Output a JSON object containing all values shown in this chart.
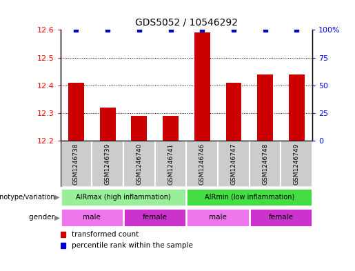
{
  "title": "GDS5052 / 10546292",
  "samples": [
    "GSM1246738",
    "GSM1246739",
    "GSM1246740",
    "GSM1246741",
    "GSM1246746",
    "GSM1246747",
    "GSM1246748",
    "GSM1246749"
  ],
  "red_values": [
    12.41,
    12.32,
    12.29,
    12.29,
    12.59,
    12.41,
    12.44,
    12.44
  ],
  "blue_values_pct": [
    100,
    100,
    100,
    100,
    100,
    100,
    100,
    100
  ],
  "ylim_left": [
    12.2,
    12.6
  ],
  "ylim_right": [
    0,
    100
  ],
  "yticks_left": [
    12.2,
    12.3,
    12.4,
    12.5,
    12.6
  ],
  "yticks_right": [
    0,
    25,
    50,
    75,
    100
  ],
  "ytick_labels_right": [
    "0",
    "25",
    "50",
    "75",
    "100%"
  ],
  "bar_color": "#cc0000",
  "dot_color": "#0000cc",
  "genotype_groups": [
    {
      "label": "AIRmax (high inflammation)",
      "start": 0,
      "end": 4,
      "color": "#99ee99"
    },
    {
      "label": "AIRmin (low inflammation)",
      "start": 4,
      "end": 8,
      "color": "#44dd44"
    }
  ],
  "gender_groups": [
    {
      "label": "male",
      "start": 0,
      "end": 2,
      "color": "#ee77ee"
    },
    {
      "label": "female",
      "start": 2,
      "end": 4,
      "color": "#cc33cc"
    },
    {
      "label": "male",
      "start": 4,
      "end": 6,
      "color": "#ee77ee"
    },
    {
      "label": "female",
      "start": 6,
      "end": 8,
      "color": "#cc33cc"
    }
  ],
  "legend_items": [
    {
      "label": "transformed count",
      "color": "#cc0000"
    },
    {
      "label": "percentile rank within the sample",
      "color": "#0000cc"
    }
  ],
  "genotype_label": "genotype/variation",
  "gender_label": "gender",
  "sample_box_color": "#cccccc",
  "box_edge_color": "#aaaaaa"
}
